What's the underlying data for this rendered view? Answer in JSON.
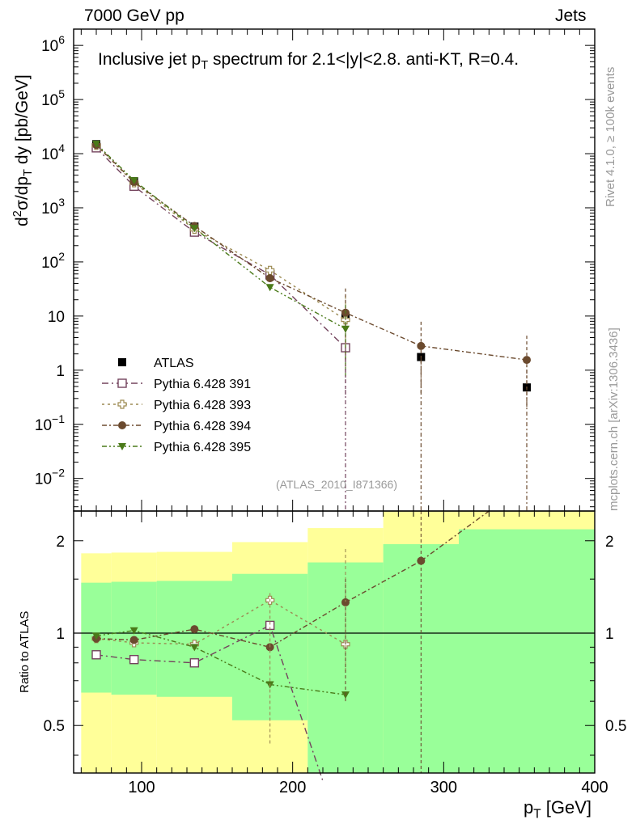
{
  "header": {
    "left": "7000 GeV pp",
    "right": "Jets"
  },
  "side_labels": {
    "rivet": "Rivet 4.1.0, ≥ 100k events",
    "mcplots": "mcplots.cern.ch [arXiv:1306.3436]"
  },
  "reference": "(ATLAS_2010_I871366)",
  "colors": {
    "band_inner": "#99ff99",
    "band_outer": "#ffff99",
    "atlas": "#000000",
    "p391": "#73435d",
    "p393": "#9c8a52",
    "p394": "#6b4a2e",
    "p395": "#4a7a19"
  },
  "chart_data": [
    {
      "type": "scatter",
      "title_main": "Inclusive jet p",
      "title_sub": "T",
      "title_rest": " spectrum for 2.1<|y|<2.8.  anti-KT, R=0.4.",
      "ylabel_parts": {
        "a": "d",
        "b": "2",
        "c": "σ/dp",
        "d": "T",
        "e": " dy [pb/GeV]"
      },
      "yscale": "log",
      "ylim": [
        0.0025,
        2000000
      ],
      "xlim": [
        55,
        400
      ],
      "ytick_labels": [
        "10^-2",
        "10^-1",
        "1",
        "10",
        "10^2",
        "10^3",
        "10^4",
        "10^5",
        "10^6"
      ],
      "series": [
        {
          "key": "atlas",
          "name": "ATLAS",
          "marker": "square-filled",
          "x": [
            70,
            95,
            135,
            185,
            235,
            285,
            355
          ],
          "y": [
            15000,
            3100,
            450,
            55,
            9.5,
            1.75,
            0.48
          ]
        },
        {
          "key": "p391",
          "name": "Pythia 6.428 391",
          "marker": "square-open",
          "dash": "8,4,2,4",
          "x": [
            70,
            95,
            135,
            185,
            235
          ],
          "y": [
            12800,
            2500,
            355,
            58,
            2.6
          ]
        },
        {
          "key": "p393",
          "name": "Pythia 6.428 393",
          "marker": "cross-open",
          "dash": "3,4",
          "x": [
            70,
            95,
            135,
            185,
            235
          ],
          "y": [
            14200,
            2900,
            400,
            70,
            8.5
          ]
        },
        {
          "key": "p394",
          "name": "Pythia 6.428 394",
          "marker": "circle-filled",
          "dash": "6,3,2,3",
          "x": [
            70,
            95,
            135,
            185,
            235,
            285,
            355
          ],
          "y": [
            14500,
            3000,
            460,
            50,
            11.5,
            2.8,
            1.55
          ]
        },
        {
          "key": "p395",
          "name": "Pythia 6.428 395",
          "marker": "triangle-filled",
          "dash": "6,3,2,3,2,3",
          "x": [
            70,
            95,
            135,
            185,
            235
          ],
          "y": [
            15200,
            3200,
            420,
            34,
            5.8
          ]
        }
      ]
    },
    {
      "type": "ratio",
      "ylabel": "Ratio to ATLAS",
      "xlabel_main": "p",
      "xlabel_sub": "T",
      "xlabel_rest": " [GeV]",
      "yscale": "log",
      "ylim": [
        0.35,
        2.5
      ],
      "xlim": [
        55,
        400
      ],
      "yticks": [
        0.5,
        1,
        2
      ],
      "ytick_labels": [
        "0.5",
        "1",
        "2"
      ],
      "xticks": [
        100,
        200,
        300,
        400
      ],
      "xtick_labels": [
        "100",
        "200",
        "300",
        "400"
      ],
      "bands": [
        {
          "x0": 60,
          "x1": 80,
          "inner": [
            0.64,
            1.46
          ],
          "outer": [
            0.35,
            1.82
          ]
        },
        {
          "x0": 80,
          "x1": 110,
          "inner": [
            0.63,
            1.47
          ],
          "outer": [
            0.35,
            1.83
          ]
        },
        {
          "x0": 110,
          "x1": 160,
          "inner": [
            0.62,
            1.48
          ],
          "outer": [
            0.35,
            1.84
          ]
        },
        {
          "x0": 160,
          "x1": 210,
          "inner": [
            0.52,
            1.56
          ],
          "outer": [
            0.35,
            1.98
          ]
        },
        {
          "x0": 210,
          "x1": 260,
          "inner": [
            0.35,
            1.7
          ],
          "outer": [
            0.35,
            2.2
          ]
        },
        {
          "x0": 260,
          "x1": 310,
          "inner": [
            0.35,
            1.95
          ],
          "outer": [
            0.35,
            2.5
          ]
        },
        {
          "x0": 310,
          "x1": 400,
          "inner": [
            0.35,
            2.18
          ],
          "outer": [
            0.35,
            2.5
          ]
        }
      ],
      "series": [
        {
          "key": "p391",
          "x": [
            70,
            95,
            135,
            185,
            220
          ],
          "y": [
            0.85,
            0.82,
            0.8,
            1.06,
            0.33
          ]
        },
        {
          "key": "p393",
          "x": [
            70,
            95,
            135,
            185,
            235
          ],
          "y": [
            0.96,
            0.93,
            0.92,
            1.28,
            0.92
          ]
        },
        {
          "key": "p394",
          "x": [
            70,
            95,
            135,
            185,
            235,
            285,
            330
          ],
          "y": [
            0.96,
            0.95,
            1.03,
            0.9,
            1.26,
            1.72,
            2.5
          ]
        },
        {
          "key": "p395",
          "x": [
            70,
            95,
            135,
            185,
            235
          ],
          "y": [
            0.98,
            1.02,
            0.9,
            0.68,
            0.63
          ]
        }
      ]
    }
  ]
}
